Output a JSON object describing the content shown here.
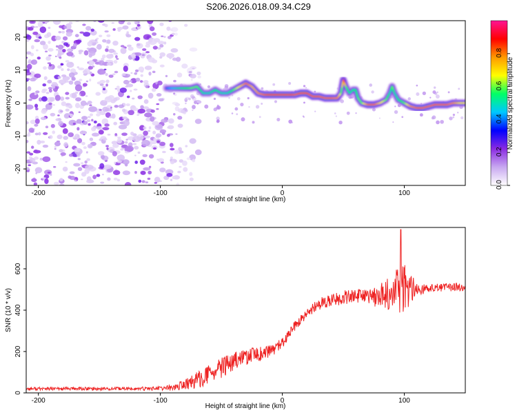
{
  "title": "S206.2026.018.09.34.C29",
  "chart_data": [
    {
      "type": "heatmap",
      "title": "S206.2026.018.09.34.C29",
      "xlabel": "Height of straight line (km)",
      "ylabel": "Frequency (Hz)",
      "xlim": [
        -210,
        150
      ],
      "ylim": [
        -25,
        25
      ],
      "x_ticks": [
        -200,
        -100,
        0,
        100
      ],
      "x_tick_labels": [
        "-200",
        "-100",
        "0",
        "100"
      ],
      "y_ticks": [
        -20,
        -10,
        0,
        10,
        20
      ],
      "y_tick_labels": [
        "-20",
        "-10",
        "0",
        "10",
        "20"
      ],
      "colorbar": {
        "label": "Normalized spectral amplitude",
        "range": [
          0,
          1
        ],
        "ticks": [
          0.0,
          0.2,
          0.4,
          0.6,
          0.8
        ],
        "tick_labels": [
          "0.0",
          "0.2",
          "0.4",
          "0.6",
          "0.8"
        ],
        "colors": [
          "#ffffff",
          "#c8a8f0",
          "#8a2be2",
          "#0000ff",
          "#00c8ff",
          "#00ff66",
          "#ffff00",
          "#ff9900",
          "#ff0000",
          "#ff1493"
        ]
      },
      "noise_region": {
        "x_range": [
          -210,
          -90
        ],
        "y_range": [
          -25,
          25
        ],
        "amplitude": [
          0.05,
          0.25
        ]
      },
      "ridge": {
        "x": [
          -95,
          -85,
          -75,
          -70,
          -65,
          -60,
          -55,
          -50,
          -45,
          -40,
          -35,
          -30,
          -25,
          -20,
          -15,
          -10,
          -5,
          0,
          5,
          10,
          15,
          20,
          25,
          30,
          35,
          40,
          45,
          48,
          50,
          52,
          55,
          58,
          60,
          62,
          65,
          70,
          75,
          80,
          85,
          88,
          90,
          92,
          95,
          100,
          105,
          110,
          115,
          120,
          125,
          130,
          135,
          140,
          145,
          150
        ],
        "y": [
          4.5,
          4.5,
          4.5,
          5,
          3,
          3,
          4,
          3,
          3,
          4,
          5,
          6,
          5,
          3,
          2.5,
          2.5,
          2.5,
          2.5,
          2.5,
          2.5,
          3,
          3,
          2,
          2,
          1.5,
          1.5,
          1.5,
          3,
          7,
          5,
          3,
          4,
          4,
          1.5,
          0,
          -0.5,
          -0.5,
          0,
          1,
          3,
          5,
          3,
          1,
          0,
          -1,
          -1.5,
          -1.5,
          -1,
          -0.5,
          -0.5,
          -0.5,
          0,
          0,
          0
        ],
        "peak_amplitude": [
          0.4,
          0.5,
          0.6,
          0.6,
          0.5,
          0.5,
          0.55,
          0.5,
          0.5,
          0.6,
          0.7,
          0.85,
          0.75,
          0.8,
          0.85,
          0.9,
          0.9,
          0.9,
          0.9,
          0.85,
          0.9,
          0.9,
          0.85,
          0.85,
          0.85,
          0.85,
          0.8,
          0.6,
          0.85,
          0.6,
          0.5,
          0.55,
          0.55,
          0.6,
          0.6,
          0.85,
          0.85,
          0.7,
          0.6,
          0.5,
          0.6,
          0.5,
          0.55,
          0.6,
          0.8,
          0.85,
          0.85,
          0.85,
          0.85,
          0.85,
          0.85,
          0.8,
          0.7,
          0.7
        ]
      }
    },
    {
      "type": "line",
      "xlabel": "Height of straight line (km)",
      "ylabel": "SNR (10 * v/v)",
      "xlim": [
        -210,
        150
      ],
      "ylim": [
        0,
        800
      ],
      "x_ticks": [
        -200,
        -100,
        0,
        100
      ],
      "x_tick_labels": [
        "-200",
        "-100",
        "0",
        "100"
      ],
      "y_ticks": [
        0,
        200,
        400,
        600
      ],
      "y_tick_labels": [
        "0",
        "200",
        "400",
        "600"
      ],
      "series": [
        {
          "name": "SNR",
          "color": "#ee2222",
          "x": [
            -210,
            -180,
            -150,
            -120,
            -100,
            -90,
            -80,
            -70,
            -60,
            -50,
            -40,
            -30,
            -20,
            -10,
            0,
            10,
            20,
            30,
            40,
            50,
            60,
            70,
            80,
            90,
            100,
            110,
            120,
            130,
            140,
            150
          ],
          "y": [
            20,
            20,
            20,
            20,
            22,
            25,
            40,
            60,
            90,
            120,
            150,
            175,
            185,
            200,
            240,
            320,
            380,
            430,
            450,
            460,
            470,
            460,
            470,
            490,
            500,
            500,
            505,
            510,
            510,
            515
          ],
          "noise": [
            8,
            8,
            8,
            8,
            10,
            15,
            25,
            40,
            45,
            50,
            45,
            40,
            35,
            30,
            25,
            25,
            25,
            30,
            30,
            35,
            30,
            40,
            55,
            90,
            140,
            30,
            20,
            20,
            20,
            20
          ]
        }
      ]
    }
  ]
}
